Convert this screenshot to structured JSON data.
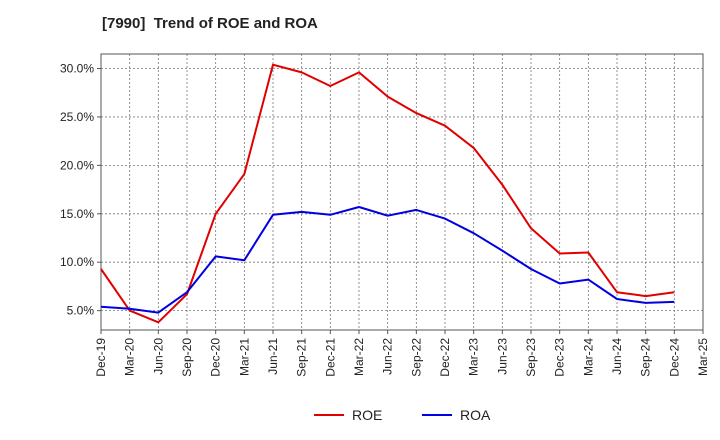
{
  "chart_data": {
    "type": "line",
    "title": "[7990]  Trend of ROE and ROA",
    "xlabel": "",
    "ylabel": "",
    "categories": [
      "Dec-19",
      "Mar-20",
      "Jun-20",
      "Sep-20",
      "Dec-20",
      "Mar-21",
      "Jun-21",
      "Sep-21",
      "Dec-21",
      "Mar-22",
      "Jun-22",
      "Sep-22",
      "Dec-22",
      "Mar-23",
      "Jun-23",
      "Sep-23",
      "Dec-23",
      "Mar-24",
      "Jun-24",
      "Sep-24",
      "Dec-24",
      "Mar-25"
    ],
    "ylim": [
      3.0,
      31.5
    ],
    "yticks": [
      5.0,
      10.0,
      15.0,
      20.0,
      25.0,
      30.0
    ],
    "ytick_labels": [
      "5.0%",
      "10.0%",
      "15.0%",
      "20.0%",
      "25.0%",
      "30.0%"
    ],
    "grid": true,
    "legend_position": "bottom-center",
    "series": [
      {
        "name": "ROE",
        "color": "#e00000",
        "values": [
          9.3,
          5.0,
          3.8,
          6.7,
          15.0,
          19.1,
          30.4,
          29.6,
          28.2,
          29.6,
          27.1,
          25.4,
          24.1,
          21.8,
          18.0,
          13.5,
          10.9,
          11.0,
          6.9,
          6.5,
          6.9,
          null
        ]
      },
      {
        "name": "ROA",
        "color": "#0000e0",
        "values": [
          5.4,
          5.2,
          4.8,
          6.9,
          10.6,
          10.2,
          14.9,
          15.2,
          14.9,
          15.7,
          14.8,
          15.4,
          14.5,
          13.0,
          11.2,
          9.3,
          7.8,
          8.2,
          6.2,
          5.8,
          5.9,
          null
        ]
      }
    ]
  }
}
